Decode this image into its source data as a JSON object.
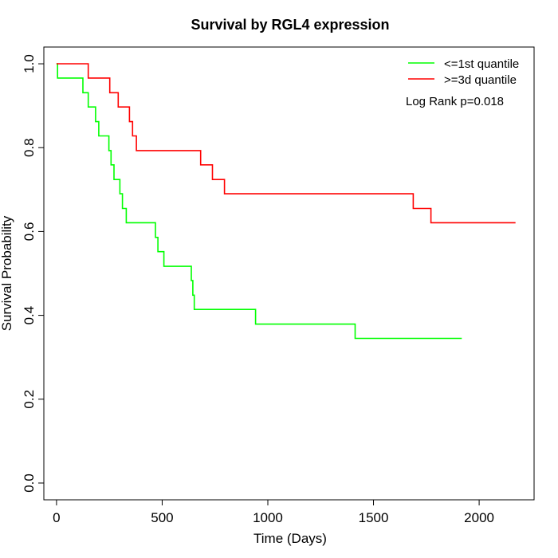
{
  "chart_data": {
    "type": "line",
    "title": "Survival by RGL4 expression",
    "xlabel": "Time (Days)",
    "ylabel": "Survival Probability",
    "xlim": [
      -60,
      2260
    ],
    "ylim": [
      -0.04,
      1.04
    ],
    "x_ticks": [
      0,
      500,
      1000,
      1500,
      2000
    ],
    "y_ticks": [
      0.0,
      0.2,
      0.4,
      0.6,
      0.8,
      1.0
    ],
    "x_tick_labels": [
      "0",
      "500",
      "1000",
      "1500",
      "2000"
    ],
    "y_tick_labels": [
      "0.0",
      "0.2",
      "0.4",
      "0.6",
      "0.8",
      "1.0"
    ],
    "grid": false,
    "legend_position": "top-right",
    "annotation": "Log Rank p=0.018",
    "series": [
      {
        "name": "<=1st quantile",
        "color": "#00ff00",
        "steps": [
          [
            0,
            1.0
          ],
          [
            5,
            0.966
          ],
          [
            125,
            0.931
          ],
          [
            150,
            0.897
          ],
          [
            185,
            0.862
          ],
          [
            200,
            0.828
          ],
          [
            248,
            0.793
          ],
          [
            258,
            0.759
          ],
          [
            272,
            0.724
          ],
          [
            300,
            0.69
          ],
          [
            312,
            0.655
          ],
          [
            330,
            0.621
          ],
          [
            468,
            0.586
          ],
          [
            480,
            0.552
          ],
          [
            508,
            0.517
          ],
          [
            638,
            0.483
          ],
          [
            645,
            0.448
          ],
          [
            652,
            0.414
          ],
          [
            942,
            0.379
          ],
          [
            1413,
            0.345
          ],
          [
            1918,
            0.345
          ]
        ]
      },
      {
        "name": ">=3d quantile",
        "color": "#ff0000",
        "steps": [
          [
            0,
            1.0
          ],
          [
            150,
            0.966
          ],
          [
            252,
            0.931
          ],
          [
            292,
            0.897
          ],
          [
            345,
            0.862
          ],
          [
            360,
            0.828
          ],
          [
            378,
            0.793
          ],
          [
            682,
            0.759
          ],
          [
            738,
            0.724
          ],
          [
            795,
            0.69
          ],
          [
            1688,
            0.655
          ],
          [
            1772,
            0.621
          ],
          [
            2172,
            0.621
          ]
        ]
      }
    ]
  }
}
